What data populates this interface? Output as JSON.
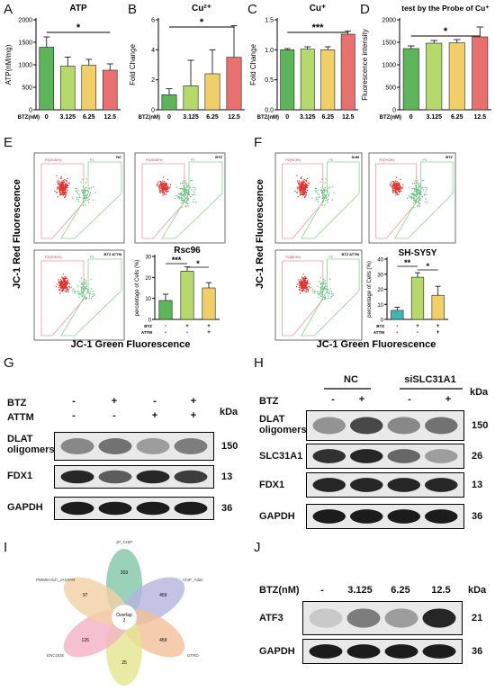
{
  "panels": {
    "A": "A",
    "B": "B",
    "C": "C",
    "D": "D",
    "E": "E",
    "F": "F",
    "G": "G",
    "H": "H",
    "I": "I",
    "J": "J"
  },
  "chart_data": [
    {
      "id": "A",
      "type": "bar",
      "title": "ATP",
      "ylabel": "ATP(nM/mg)",
      "xlabel_prefix": "BTZ(nM)",
      "categories": [
        "0",
        "3.125",
        "6.25",
        "12.5"
      ],
      "values": [
        1390,
        970,
        990,
        880
      ],
      "errors": [
        230,
        200,
        130,
        140
      ],
      "ylim": [
        0,
        2000
      ],
      "yticks": [
        0,
        500,
        1000,
        1500,
        2000
      ],
      "colors": [
        "#5db55a",
        "#b6d96b",
        "#f0cf69",
        "#e8716f"
      ],
      "sig": "*"
    },
    {
      "id": "B",
      "type": "bar",
      "title": "Cu²⁺",
      "ylabel": "Fold Change",
      "xlabel_prefix": "BTZ(nM)",
      "categories": [
        "0",
        "3.125",
        "6.25",
        "12.5"
      ],
      "values": [
        1.0,
        1.6,
        2.4,
        3.5
      ],
      "errors": [
        0.4,
        1.7,
        1.6,
        2.1
      ],
      "ylim": [
        0,
        6
      ],
      "yticks": [
        0,
        2,
        4,
        6
      ],
      "colors": [
        "#5db55a",
        "#b6d96b",
        "#f0cf69",
        "#e8716f"
      ],
      "sig": "*"
    },
    {
      "id": "C",
      "type": "bar",
      "title": "Cu⁺",
      "ylabel": "Fold Change",
      "xlabel_prefix": "BTZ(nM)",
      "categories": [
        "0",
        "3.125",
        "6.25",
        "12.5"
      ],
      "values": [
        1.0,
        1.01,
        1.0,
        1.26
      ],
      "errors": [
        0.02,
        0.04,
        0.05,
        0.05
      ],
      "ylim": [
        0,
        1.5
      ],
      "yticks": [
        0.0,
        0.5,
        1.0,
        1.5
      ],
      "colors": [
        "#5db55a",
        "#b6d96b",
        "#f0cf69",
        "#e8716f"
      ],
      "sig": "***"
    },
    {
      "id": "D",
      "type": "bar",
      "title": "test by the Probe of Cu⁺",
      "ylabel": "Fluorescence intensity",
      "xlabel_prefix": "BTZ(nM)",
      "categories": [
        "0",
        "3.125",
        "6.25",
        "12.5"
      ],
      "values": [
        1360,
        1480,
        1490,
        1620
      ],
      "errors": [
        60,
        60,
        70,
        220
      ],
      "ylim": [
        0,
        2000
      ],
      "yticks": [
        0,
        500,
        1000,
        1500,
        2000
      ],
      "colors": [
        "#5db55a",
        "#b6d96b",
        "#f0cf69",
        "#e8716f"
      ],
      "sig": "*"
    },
    {
      "id": "E-bar",
      "type": "bar",
      "title": "Rsc96",
      "ylabel": "percentage of Cells (%)",
      "categories": [
        "1",
        "2",
        "3"
      ],
      "values": [
        9,
        23,
        15
      ],
      "errors": [
        3,
        2,
        2.5
      ],
      "ylim": [
        0,
        30
      ],
      "yticks": [
        0,
        10,
        20,
        30
      ],
      "colors": [
        "#5db55a",
        "#b6d96b",
        "#f0cf69"
      ],
      "sig_pairs": [
        "***",
        "*"
      ],
      "treatments": {
        "BTZ": [
          "-",
          "+",
          "+"
        ],
        "ATTM": [
          "-",
          "-",
          "+"
        ]
      }
    },
    {
      "id": "F-bar",
      "type": "bar",
      "title": "SH-SY5Y",
      "ylabel": "percentage of Cells (%)",
      "categories": [
        "1",
        "2",
        "3"
      ],
      "values": [
        6,
        28,
        16
      ],
      "errors": [
        2,
        3,
        6
      ],
      "ylim": [
        0,
        40
      ],
      "yticks": [
        0,
        10,
        20,
        30,
        40
      ],
      "colors": [
        "#42b5b0",
        "#b6d96b",
        "#f0cf69"
      ],
      "sig_pairs": [
        "**",
        "*"
      ],
      "treatments": {
        "BTZ": [
          "-",
          "+",
          "+"
        ],
        "ATTM": [
          "-",
          "-",
          "+"
        ]
      }
    }
  ],
  "flow": {
    "y_axis": "JC-1 Red Fluorescence",
    "x_axis": "JC-1 Green Fluorescence",
    "E_plots": [
      {
        "tag": "NC",
        "gate_red": "P2(29.54%)",
        "gate_green": "P3"
      },
      {
        "tag": "BTZ",
        "gate_red": "P2(29.58%)",
        "gate_green": "P3"
      },
      {
        "tag": "BTZ ATTM",
        "gate_red": "P2(29.84%)",
        "gate_green": "P3"
      }
    ],
    "F_plots": [
      {
        "tag": "SnM",
        "gate_red": "P2(93.3%)",
        "gate_green": "P3"
      },
      {
        "tag": "BTZ",
        "gate_red": "P2(79.3%)",
        "gate_green": "P3"
      },
      {
        "tag": "BTZ ATTM",
        "gate_red": "P2(88.3%)",
        "gate_green": "P3"
      }
    ]
  },
  "blot_G": {
    "rows_treat": [
      {
        "label": "BTZ",
        "marks": [
          "-",
          "+",
          "-",
          "+"
        ]
      },
      {
        "label": "ATTM",
        "marks": [
          "-",
          "-",
          "+",
          "+"
        ]
      }
    ],
    "kda_label": "kDa",
    "bands": [
      {
        "label": "DLAT\noligomers",
        "kda": "150"
      },
      {
        "label": "FDX1",
        "kda": "13"
      },
      {
        "label": "GAPDH",
        "kda": "36"
      }
    ]
  },
  "blot_H": {
    "groups": [
      "NC",
      "siSLC31A1"
    ],
    "rows_treat": [
      {
        "label": "BTZ",
        "marks": [
          "-",
          "+",
          "-",
          "+"
        ]
      }
    ],
    "kda_label": "kDa",
    "bands": [
      {
        "label": "DLAT\noligomers",
        "kda": "150"
      },
      {
        "label": "SLC31A1",
        "kda": "26"
      },
      {
        "label": "FDX1",
        "kda": "13"
      },
      {
        "label": "GAPDH",
        "kda": "36"
      }
    ]
  },
  "venn": {
    "center": "Overlap\n2",
    "petals": [
      {
        "name": "JP_CHIP",
        "count": "203",
        "color": "#7fc7a8"
      },
      {
        "name": "ChIP_Atlas",
        "count": "459",
        "color": "#b5b4de"
      },
      {
        "name": "GTRD",
        "count": "459",
        "color": "#f3c09a"
      },
      {
        "name": "CHEA",
        "count": "25",
        "color": "#e3e590"
      },
      {
        "name": "ENCODE",
        "count": "126",
        "color": "#f2b1c4"
      },
      {
        "name": "PWMEnrich_JASPAR",
        "count": "97",
        "color": "#f3cfa5"
      }
    ]
  },
  "blot_J": {
    "header_label": "BTZ(nM)",
    "conc": [
      "-",
      "3.125",
      "6.25",
      "12.5"
    ],
    "kda_label": "kDa",
    "bands": [
      {
        "label": "ATF3",
        "kda": "21"
      },
      {
        "label": "GAPDH",
        "kda": "36"
      }
    ]
  }
}
